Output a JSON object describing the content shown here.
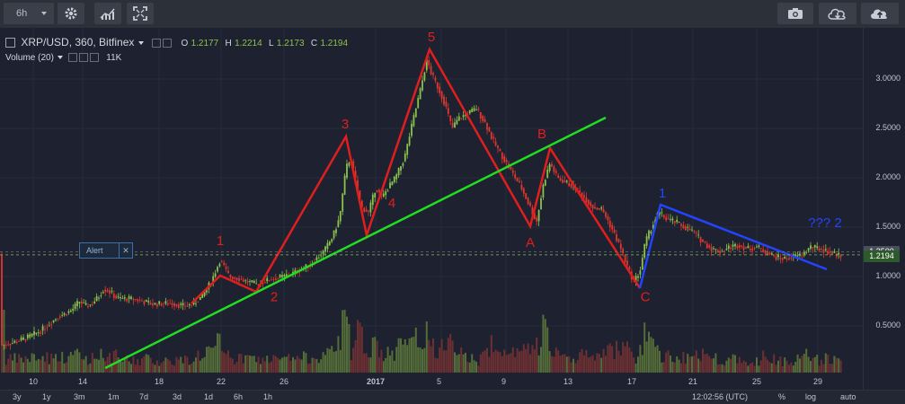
{
  "toolbar": {
    "interval": "6h",
    "icons": [
      "gear-icon",
      "indicators-icon",
      "fullscreen-icon",
      "camera-icon",
      "cloud-download-icon",
      "cloud-upload-icon"
    ]
  },
  "legend": {
    "symbol": "XRP/USD, 360, Bitfinex",
    "o_label": "O",
    "o_value": "1.2177",
    "h_label": "H",
    "h_value": "1.2214",
    "l_label": "L",
    "l_value": "1.2173",
    "c_label": "C",
    "c_value": "1.2194",
    "volume_label": "Volume (20)",
    "volume_value": "11K"
  },
  "alert_label": "Alert",
  "colors": {
    "up": "#8bc34a",
    "down": "#e0362e",
    "wave": "#e01e1e",
    "trend": "#22dd22",
    "blue": "#2244ff"
  },
  "bottom_bar": {
    "ranges": [
      "3y",
      "1y",
      "3m",
      "1m",
      "7d",
      "3d",
      "1d",
      "6h",
      "1h"
    ],
    "time": "12:02:56 (UTC)",
    "percent": "%",
    "log": "log",
    "auto": "auto"
  },
  "chart_data": {
    "type": "candlestick",
    "x_ticks": [
      "10",
      "14",
      "18",
      "22",
      "26",
      "2017",
      "5",
      "9",
      "13",
      "17",
      "21",
      "25",
      "29"
    ],
    "y_ticks": [
      "3.0000",
      "2.5000",
      "2.0000",
      "1.5000",
      "1.0000",
      "0.5000"
    ],
    "last_price": "1.2194",
    "crosshair_price": "1.2500",
    "ylim": [
      0.1,
      3.5
    ],
    "close_path": [
      [
        0,
        0.3
      ],
      [
        14,
        0.33
      ],
      [
        30,
        0.38
      ],
      [
        45,
        0.45
      ],
      [
        55,
        0.52
      ],
      [
        65,
        0.6
      ],
      [
        72,
        0.62
      ],
      [
        80,
        0.66
      ],
      [
        88,
        0.75
      ],
      [
        95,
        0.7
      ],
      [
        102,
        0.72
      ],
      [
        110,
        0.8
      ],
      [
        115,
        0.87
      ],
      [
        120,
        0.86
      ],
      [
        130,
        0.78
      ],
      [
        150,
        0.77
      ],
      [
        170,
        0.72
      ],
      [
        190,
        0.73
      ],
      [
        205,
        0.7
      ],
      [
        215,
        0.72
      ],
      [
        225,
        0.8
      ],
      [
        235,
        0.95
      ],
      [
        245,
        1.17
      ],
      [
        255,
        1.0
      ],
      [
        265,
        0.98
      ],
      [
        275,
        0.95
      ],
      [
        285,
        0.92
      ],
      [
        300,
        0.97
      ],
      [
        315,
        1.0
      ],
      [
        330,
        1.05
      ],
      [
        345,
        1.12
      ],
      [
        360,
        1.25
      ],
      [
        370,
        1.4
      ],
      [
        378,
        1.6
      ],
      [
        385,
        2.1
      ],
      [
        390,
        2.2
      ],
      [
        395,
        2.0
      ],
      [
        402,
        1.7
      ],
      [
        410,
        1.65
      ],
      [
        418,
        1.9
      ],
      [
        425,
        1.8
      ],
      [
        432,
        1.9
      ],
      [
        440,
        2.0
      ],
      [
        450,
        2.2
      ],
      [
        460,
        2.6
      ],
      [
        468,
        2.9
      ],
      [
        475,
        3.2
      ],
      [
        480,
        3.05
      ],
      [
        488,
        2.9
      ],
      [
        495,
        2.75
      ],
      [
        503,
        2.5
      ],
      [
        510,
        2.6
      ],
      [
        520,
        2.65
      ],
      [
        530,
        2.7
      ],
      [
        540,
        2.55
      ],
      [
        550,
        2.35
      ],
      [
        560,
        2.2
      ],
      [
        570,
        2.05
      ],
      [
        580,
        1.9
      ],
      [
        590,
        1.7
      ],
      [
        597,
        1.55
      ],
      [
        605,
        1.95
      ],
      [
        612,
        2.15
      ],
      [
        620,
        2.0
      ],
      [
        630,
        1.95
      ],
      [
        640,
        1.9
      ],
      [
        650,
        1.8
      ],
      [
        660,
        1.7
      ],
      [
        670,
        1.68
      ],
      [
        680,
        1.5
      ],
      [
        690,
        1.3
      ],
      [
        698,
        1.1
      ],
      [
        705,
        0.95
      ],
      [
        712,
        1.05
      ],
      [
        718,
        1.35
      ],
      [
        725,
        1.5
      ],
      [
        733,
        1.65
      ],
      [
        742,
        1.58
      ],
      [
        752,
        1.55
      ],
      [
        762,
        1.5
      ],
      [
        772,
        1.45
      ],
      [
        782,
        1.35
      ],
      [
        792,
        1.28
      ],
      [
        802,
        1.25
      ],
      [
        812,
        1.3
      ],
      [
        822,
        1.32
      ],
      [
        832,
        1.28
      ],
      [
        842,
        1.3
      ],
      [
        852,
        1.25
      ],
      [
        862,
        1.2
      ],
      [
        872,
        1.18
      ],
      [
        882,
        1.2
      ],
      [
        892,
        1.22
      ],
      [
        902,
        1.3
      ],
      [
        912,
        1.28
      ],
      [
        922,
        1.25
      ],
      [
        932,
        1.22
      ],
      [
        938,
        1.22
      ]
    ],
    "annotations": [
      {
        "text": "1",
        "x": 245,
        "y": 1.32,
        "color": "wave"
      },
      {
        "text": "2",
        "x": 305,
        "y": 0.75,
        "color": "wave"
      },
      {
        "text": "3",
        "x": 384,
        "y": 2.5,
        "color": "wave"
      },
      {
        "text": "4",
        "x": 436,
        "y": 1.7,
        "color": "wave"
      },
      {
        "text": "5",
        "x": 480,
        "y": 3.38,
        "color": "wave"
      },
      {
        "text": "A",
        "x": 590,
        "y": 1.3,
        "color": "wave"
      },
      {
        "text": "B",
        "x": 603,
        "y": 2.4,
        "color": "wave"
      },
      {
        "text": "C",
        "x": 718,
        "y": 0.75,
        "color": "wave"
      },
      {
        "text": "1",
        "x": 737,
        "y": 1.8,
        "color": "blue"
      },
      {
        "text": "??? 2",
        "x": 918,
        "y": 1.5,
        "color": "blue"
      }
    ]
  }
}
